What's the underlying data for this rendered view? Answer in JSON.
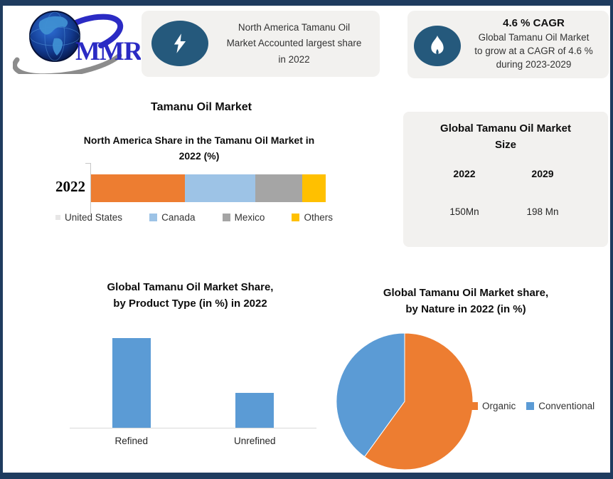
{
  "logo": {
    "text": "MMR"
  },
  "header_cards": [
    {
      "icon": "lightning-icon",
      "text": "North America Tamanu Oil\nMarket Accounted largest share\nin 2022"
    },
    {
      "icon": "flame-icon",
      "title": "4.6 % CAGR",
      "text": "Global Tamanu Oil Market\nto grow at a CAGR of 4.6 %\nduring 2023-2029"
    }
  ],
  "section_title": "Tamanu Oil Market",
  "market_size_card": {
    "title": "Global Tamanu Oil Market\nSize",
    "columns": [
      {
        "year": "2022",
        "value": "150Mn"
      },
      {
        "year": "2029",
        "value": "198 Mn"
      }
    ]
  },
  "colors": {
    "frame": "#1F3C5F",
    "card_background": "#F2F1EF",
    "icon_ellipse": "#25597C",
    "accent_orange": "#ED7D31",
    "accent_light_blue": "#9DC3E6",
    "accent_gray": "#A5A5A5",
    "accent_yellow": "#FFC000",
    "accent_blue": "#5B9BD5"
  },
  "chart_data": [
    {
      "type": "bar",
      "orientation": "horizontal-stacked",
      "title": "North America Share in the Tamanu Oil Market in\n2022 (%)",
      "categories": [
        "2022"
      ],
      "series": [
        {
          "name": "United States",
          "value": 40,
          "color": "#ED7D31",
          "legend_marker": {
            "color": "#E7E6E6",
            "size": 7
          }
        },
        {
          "name": "Canada",
          "value": 30,
          "color": "#9DC3E6"
        },
        {
          "name": "Mexico",
          "value": 20,
          "color": "#A5A5A5"
        },
        {
          "name": "Others",
          "value": 10,
          "color": "#FFC000"
        }
      ],
      "legend_position": "bottom",
      "grid": false
    },
    {
      "type": "bar",
      "title": "Global Tamanu Oil Market Share,\nby Product Type  (in %) in 2022",
      "categories": [
        "Refined",
        "Unrefined"
      ],
      "values": [
        70,
        27
      ],
      "color": "#5B9BD5",
      "ylim": [
        0,
        100
      ],
      "grid": false,
      "axis": "baseline-only"
    },
    {
      "type": "pie",
      "title": "Global Tamanu Oil Market share,\nby Nature in 2022 (in %)",
      "labels": [
        "Organic",
        "Conventional"
      ],
      "values": [
        60,
        40
      ],
      "colors": [
        "#ED7D31",
        "#5B9BD5"
      ],
      "start_angle_deg": 0,
      "direction": "clockwise",
      "legend_position": "right"
    }
  ]
}
